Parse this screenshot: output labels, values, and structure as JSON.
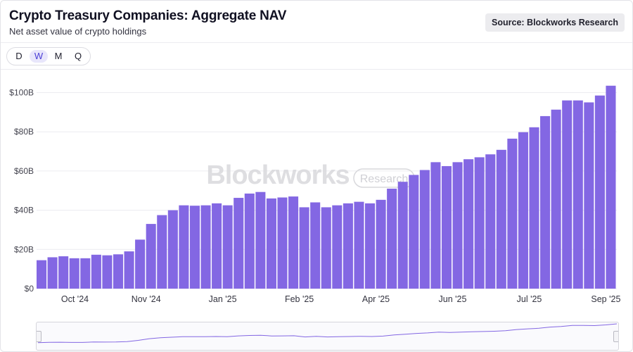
{
  "header": {
    "title": "Crypto Treasury Companies: Aggregate NAV",
    "subtitle": "Net asset value of crypto holdings",
    "source": "Source: Blockworks Research"
  },
  "periods": {
    "items": [
      "D",
      "W",
      "M",
      "Q"
    ],
    "selected": "W"
  },
  "watermark": {
    "brand": "Blockworks",
    "tag": "Research"
  },
  "colors": {
    "bar": "#8367e3",
    "active_period_bg": "#e8e6fb",
    "nav_line": "#8367e3"
  },
  "chart_data": {
    "type": "bar",
    "title": "Crypto Treasury Companies: Aggregate NAV",
    "subtitle": "Net asset value of crypto holdings",
    "xlabel": "",
    "ylabel": "",
    "grid": true,
    "ylim": [
      0,
      108
    ],
    "y_ticks": [
      0,
      20,
      40,
      60,
      80,
      100
    ],
    "y_tick_labels": [
      "$0",
      "$20B",
      "$40B",
      "$60B",
      "$80B",
      "$100B"
    ],
    "x_tick_labels": [
      {
        "label": "Oct '24",
        "index": 3.5
      },
      {
        "label": "Nov '24",
        "index": 10
      },
      {
        "label": "Jan '25",
        "index": 17
      },
      {
        "label": "Feb '25",
        "index": 24
      },
      {
        "label": "Apr '25",
        "index": 31
      },
      {
        "label": "Jun '25",
        "index": 38
      },
      {
        "label": "Jul '25",
        "index": 45
      },
      {
        "label": "Sep '25",
        "index": 52
      }
    ],
    "series": [
      {
        "name": "Aggregate NAV ($B)",
        "values": [
          14.5,
          16,
          16.5,
          15.5,
          15.5,
          17.3,
          17,
          17.5,
          19,
          25,
          33,
          37.5,
          40,
          42.5,
          42.3,
          42.5,
          43.5,
          42.5,
          46.3,
          48.5,
          49.3,
          46,
          46.5,
          47,
          41.5,
          44,
          41.5,
          42.5,
          43.5,
          44.3,
          43.5,
          45.3,
          51,
          54.5,
          58,
          60.5,
          64.5,
          62.5,
          64.5,
          66,
          67,
          68.5,
          70.8,
          76.5,
          79.8,
          82.3,
          88,
          91.3,
          96,
          96,
          95,
          98.5,
          103.5
        ]
      }
    ]
  }
}
